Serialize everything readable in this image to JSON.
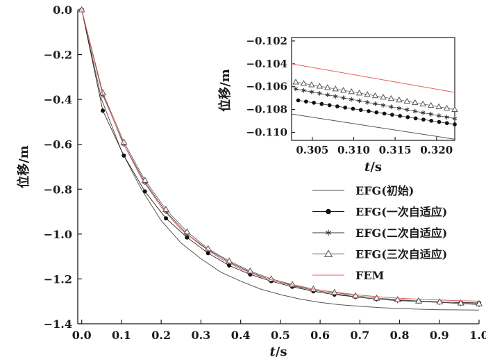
{
  "chart_data": [
    {
      "type": "line",
      "xlabel_italic": "t",
      "xlabel_unit": "/s",
      "ylabel": "位移/m",
      "xlim": [
        -0.01,
        1.0
      ],
      "ylim": [
        -1.4,
        0.0
      ],
      "xticks": [
        "0.0",
        "0.1",
        "0.2",
        "0.3",
        "0.4",
        "0.5",
        "0.6",
        "0.7",
        "0.8",
        "0.9",
        "1.0"
      ],
      "yticks": [
        "0.0",
        "−0.2",
        "−0.4",
        "−0.6",
        "−0.8",
        "−1.0",
        "−1.2",
        "−1.4"
      ],
      "grid": false,
      "legend_position": "right",
      "colors": {
        "efg": "#555555",
        "fem": "#e06060",
        "axis": "#1a1a1a"
      },
      "series": [
        {
          "name": "EFG(初始)",
          "marker": "none",
          "color": "#555555",
          "x": [
            0,
            0.05,
            0.1,
            0.15,
            0.2,
            0.25,
            0.3,
            0.35,
            0.4,
            0.45,
            0.5,
            0.55,
            0.6,
            0.65,
            0.7,
            0.75,
            0.8,
            0.85,
            0.9,
            0.95,
            1.0
          ],
          "y": [
            0,
            -0.4,
            -0.63,
            -0.8,
            -0.94,
            -1.04,
            -1.11,
            -1.17,
            -1.21,
            -1.245,
            -1.27,
            -1.29,
            -1.305,
            -1.315,
            -1.322,
            -1.328,
            -1.332,
            -1.335,
            -1.337,
            -1.338,
            -1.339
          ]
        },
        {
          "name": "EFG(一次自适应)",
          "marker": "dot",
          "color": "#111111",
          "x": [
            0,
            0.053,
            0.106,
            0.159,
            0.212,
            0.265,
            0.318,
            0.371,
            0.424,
            0.477,
            0.53,
            0.583,
            0.636,
            0.689,
            0.742,
            0.795,
            0.848,
            0.901,
            0.954,
            1.0
          ],
          "y": [
            0,
            -0.45,
            -0.65,
            -0.81,
            -0.93,
            -1.015,
            -1.085,
            -1.14,
            -1.18,
            -1.21,
            -1.235,
            -1.255,
            -1.27,
            -1.28,
            -1.29,
            -1.295,
            -1.3,
            -1.303,
            -1.305,
            -1.307
          ]
        },
        {
          "name": "EFG(二次自适应)",
          "marker": "star",
          "color": "#333333",
          "x": [
            0,
            0.053,
            0.106,
            0.159,
            0.212,
            0.265,
            0.318,
            0.371,
            0.424,
            0.477,
            0.53,
            0.583,
            0.636,
            0.689,
            0.742,
            0.795,
            0.848,
            0.901,
            0.954,
            1.0
          ],
          "y": [
            0,
            -0.38,
            -0.6,
            -0.77,
            -0.9,
            -1.0,
            -1.07,
            -1.125,
            -1.17,
            -1.205,
            -1.23,
            -1.25,
            -1.265,
            -1.28,
            -1.29,
            -1.297,
            -1.3,
            -1.305,
            -1.31,
            -1.315
          ]
        },
        {
          "name": "EFG(三次自适应)",
          "marker": "triangle",
          "color": "#555555",
          "x": [
            0,
            0.053,
            0.106,
            0.159,
            0.212,
            0.265,
            0.318,
            0.371,
            0.424,
            0.477,
            0.53,
            0.583,
            0.636,
            0.689,
            0.742,
            0.795,
            0.848,
            0.901,
            0.954,
            1.0
          ],
          "y": [
            0,
            -0.37,
            -0.59,
            -0.76,
            -0.89,
            -0.99,
            -1.065,
            -1.12,
            -1.165,
            -1.2,
            -1.225,
            -1.245,
            -1.26,
            -1.275,
            -1.285,
            -1.292,
            -1.298,
            -1.302,
            -1.307,
            -1.31
          ]
        },
        {
          "name": "FEM",
          "marker": "none",
          "color": "#e06060",
          "x": [
            0,
            0.05,
            0.1,
            0.15,
            0.2,
            0.25,
            0.3,
            0.35,
            0.4,
            0.45,
            0.5,
            0.55,
            0.6,
            0.65,
            0.7,
            0.75,
            0.8,
            0.85,
            0.9,
            0.95,
            1.0
          ],
          "y": [
            0,
            -0.36,
            -0.58,
            -0.75,
            -0.88,
            -0.98,
            -1.05,
            -1.11,
            -1.155,
            -1.19,
            -1.215,
            -1.235,
            -1.25,
            -1.262,
            -1.272,
            -1.28,
            -1.286,
            -1.29,
            -1.294,
            -1.297,
            -1.299
          ]
        }
      ]
    },
    {
      "type": "line",
      "xlabel_italic": "t",
      "xlabel_unit": "/s",
      "ylabel": "位移/m",
      "xlim": [
        0.3025,
        0.3222
      ],
      "ylim": [
        -0.1107,
        -0.1017
      ],
      "xticks": [
        "0.305",
        "0.310",
        "0.315",
        "0.320"
      ],
      "yticks": [
        "−0.102",
        "−0.104",
        "−0.106",
        "−0.108",
        "−0.110"
      ],
      "grid": false,
      "series": [
        {
          "name": "EFG(初始)",
          "marker": "none",
          "x": [
            0.3025,
            0.3222
          ],
          "y": [
            -0.1084,
            -0.1106
          ]
        },
        {
          "name": "EFG(一次自适应)",
          "marker": "dot",
          "x": [
            0.3033,
            0.3222
          ],
          "y": [
            -0.1072,
            -0.1093
          ]
        },
        {
          "name": "EFG(二次自适应)",
          "marker": "star",
          "x": [
            0.303,
            0.3222
          ],
          "y": [
            -0.1062,
            -0.1088
          ]
        },
        {
          "name": "EFG(三次自适应)",
          "marker": "triangle",
          "x": [
            0.303,
            0.3222
          ],
          "y": [
            -0.1056,
            -0.108
          ]
        },
        {
          "name": "FEM",
          "marker": "none",
          "x": [
            0.3025,
            0.3222
          ],
          "y": [
            -0.104,
            -0.1065
          ]
        }
      ]
    }
  ]
}
